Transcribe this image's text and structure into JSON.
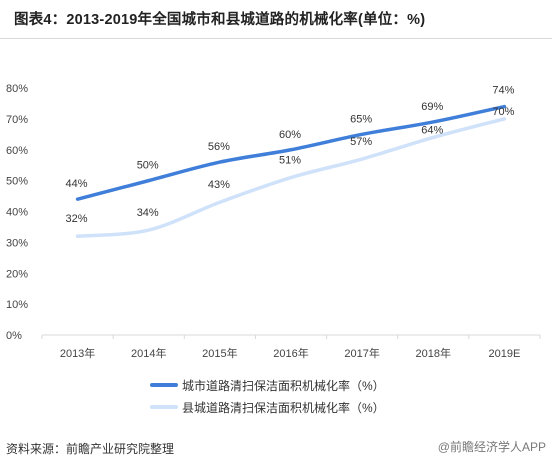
{
  "title": "图表4：2013-2019年全国城市和县城道路的机械化率(单位：%)",
  "footer": "资料来源：前瞻产业研究院整理",
  "watermark": "@前瞻经济学人APP",
  "colors": {
    "city": "#3f7fd9",
    "county": "#cfe2fa",
    "grid": "#d9d9d9"
  },
  "chart_data": {
    "type": "line",
    "categories": [
      "2013年",
      "2014年",
      "2015年",
      "2016年",
      "2017年",
      "2018年",
      "2019E"
    ],
    "ylim": [
      0,
      80
    ],
    "yticks": [
      "0%",
      "10%",
      "20%",
      "30%",
      "40%",
      "50%",
      "60%",
      "70%",
      "80%"
    ],
    "grid": false,
    "legend_position": "bottom",
    "series": [
      {
        "name": "城市道路清扫保洁面积机械化率（%）",
        "values": [
          44,
          50,
          56,
          60,
          65,
          69,
          74
        ],
        "labels": [
          "44%",
          "50%",
          "56%",
          "60%",
          "65%",
          "69%",
          "74%"
        ]
      },
      {
        "name": "县城道路清扫保洁面积机械化率（%）",
        "values": [
          32,
          34,
          43,
          51,
          57,
          64,
          70
        ],
        "labels": [
          "32%",
          "34%",
          "43%",
          "51%",
          "57%",
          "64%",
          "70%"
        ]
      }
    ]
  }
}
